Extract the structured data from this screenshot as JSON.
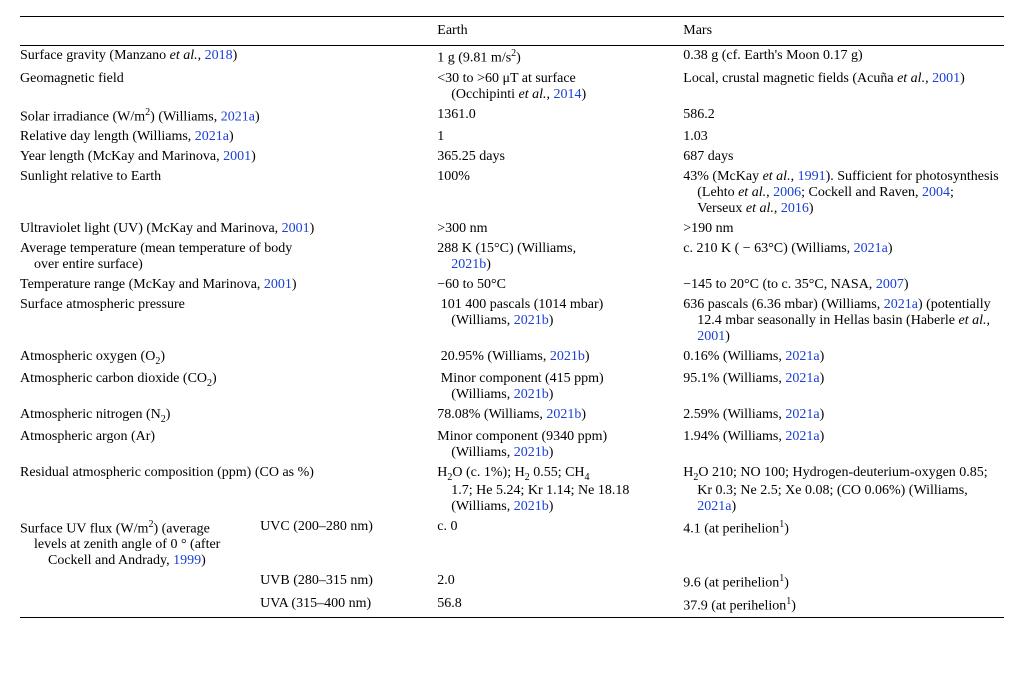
{
  "columns": {
    "earth": "Earth",
    "mars": "Mars"
  },
  "rows": {
    "r1": {
      "param": "Surface gravity (Manzano <i>et al.</i>, <span class=\"cite\">2018</span>)",
      "earth": "1 g (9.81 m/s<sup>2</sup>)",
      "mars": "0.38 g (cf. Earth's Moon 0.17 g)"
    },
    "r2": {
      "param": "Geomagnetic field",
      "earth": "&lt;30 to &gt;60 &mu;T at surface<span class=\"indent\">(Occhipinti <i>et al.</i>, <span class=\"cite\">2014</span>)</span>",
      "mars": "Local, crustal magnetic fields (Acu&ntilde;a <i>et al.</i>, <span class=\"cite\">2001</span>)"
    },
    "r3": {
      "param": "Solar irradiance (W/m<sup>2</sup>) (Williams, <span class=\"cite\">2021a</span>)",
      "earth": "1361.0",
      "mars": "586.2"
    },
    "r4": {
      "param": "Relative day length (Williams, <span class=\"cite\">2021a</span>)",
      "earth": "1",
      "mars": "1.03"
    },
    "r5": {
      "param": "Year length (McKay and Marinova, <span class=\"cite\">2001</span>)",
      "earth": "365.25 days",
      "mars": "687 days"
    },
    "r6": {
      "param": "Sunlight relative to Earth",
      "earth": "100%",
      "mars": "43% (McKay <i>et al.</i>, <span class=\"cite\">1991</span>). Sufficient for photosynthesis<span class=\"indent\">(Lehto <i>et al.</i>, <span class=\"cite\">2006</span>; Cockell and Raven, <span class=\"cite\">2004</span>; Verseux <i>et al.</i>, <span class=\"cite\">2016</span>)</span>"
    },
    "r7": {
      "param": "Ultraviolet light (UV) (McKay and Marinova, <span class=\"cite\">2001</span>)",
      "earth": "&gt;300 nm",
      "mars": "&gt;190 nm"
    },
    "r8": {
      "param": "Average temperature (mean temperature of body<span class=\"indent\">over entire surface)</span>",
      "earth": "288 K (15&deg;C) (Williams,<span class=\"indent\"><span class=\"cite\">2021b</span>)</span>",
      "mars": "c. 210 K ( &minus; 63&deg;C) (Williams, <span class=\"cite\">2021a</span>)"
    },
    "r9": {
      "param": "Temperature range (McKay and Marinova, <span class=\"cite\">2001</span>)",
      "earth": "&minus;60 to 50&deg;C",
      "mars": "&minus;145 to 20&deg;C (to c. 35&deg;C, NASA, <span class=\"cite\">2007</span>)"
    },
    "r10": {
      "param": "Surface atmospheric pressure",
      "earth": "&nbsp;101 400 pascals (1014 mbar)<span class=\"indent\">(Williams, <span class=\"cite\">2021b</span>)</span>",
      "mars": "636 pascals (6.36 mbar) (Williams, <span class=\"cite\">2021a</span>) (potentially<span class=\"indent\">12.4 mbar seasonally in Hellas basin (Haberle <i>et al.</i>, <span class=\"cite\">2001</span>)</span>"
    },
    "r11": {
      "param": "Atmospheric oxygen (O<sub>2</sub>)",
      "earth": "&nbsp;20.95% (Williams, <span class=\"cite\">2021b</span>)",
      "mars": "0.16% (Williams, <span class=\"cite\">2021a</span>)"
    },
    "r12": {
      "param": "Atmospheric carbon dioxide (CO<sub>2</sub>)",
      "earth": "&nbsp;Minor component (415 ppm)<span class=\"indent\">(Williams, <span class=\"cite\">2021b</span>)</span>",
      "mars": "95.1% (Williams, <span class=\"cite\">2021a</span>)"
    },
    "r13": {
      "param": "Atmospheric nitrogen (N<sub>2</sub>)",
      "earth": "78.08% (Williams, <span class=\"cite\">2021b</span>)",
      "mars": "2.59% (Williams, <span class=\"cite\">2021a</span>)"
    },
    "r14": {
      "param": "Atmospheric argon (Ar)",
      "earth": "Minor component (9340 ppm)<span class=\"indent\">(Williams, <span class=\"cite\">2021b</span>)</span>",
      "mars": "1.94% (Williams, <span class=\"cite\">2021a</span>)"
    },
    "r15": {
      "param": "Residual atmospheric composition (ppm) (CO as %)",
      "earth": "H<sub>2</sub>O (c. 1%); H<sub>2</sub> 0.55; CH<sub>4</sub><span class=\"indent\">1.7; He 5.24; Kr 1.14; Ne 18.18 (Williams, <span class=\"cite\">2021b</span>)</span>",
      "mars": "H<sub>2</sub>O 210; NO 100; Hydrogen-deuterium-oxygen 0.85;<span class=\"indent\">Kr 0.3; Ne 2.5; Xe 0.08; (CO 0.06%) (Williams, <span class=\"cite\">2021a</span>)</span>"
    },
    "r16": {
      "param": "Surface UV flux (W/m<sup>2</sup>) (average<span class=\"indent\">levels at zenith angle of 0&nbsp;&deg; (after Cockell and Andrady, <span class=\"cite\">1999</span>)</span>",
      "sub": "UVC (200&ndash;280 nm)",
      "earth": "c. 0",
      "mars": "4.1 (at perihelion<sup>1</sup>)"
    },
    "r17": {
      "sub": "UVB (280&ndash;315 nm)",
      "earth": "2.0",
      "mars": "9.6 (at perihelion<sup>1</sup>)"
    },
    "r18": {
      "sub": "UVA (315&ndash;400 nm)",
      "earth": "56.8",
      "mars": "37.9 (at perihelion<sup>1</sup>)"
    }
  }
}
